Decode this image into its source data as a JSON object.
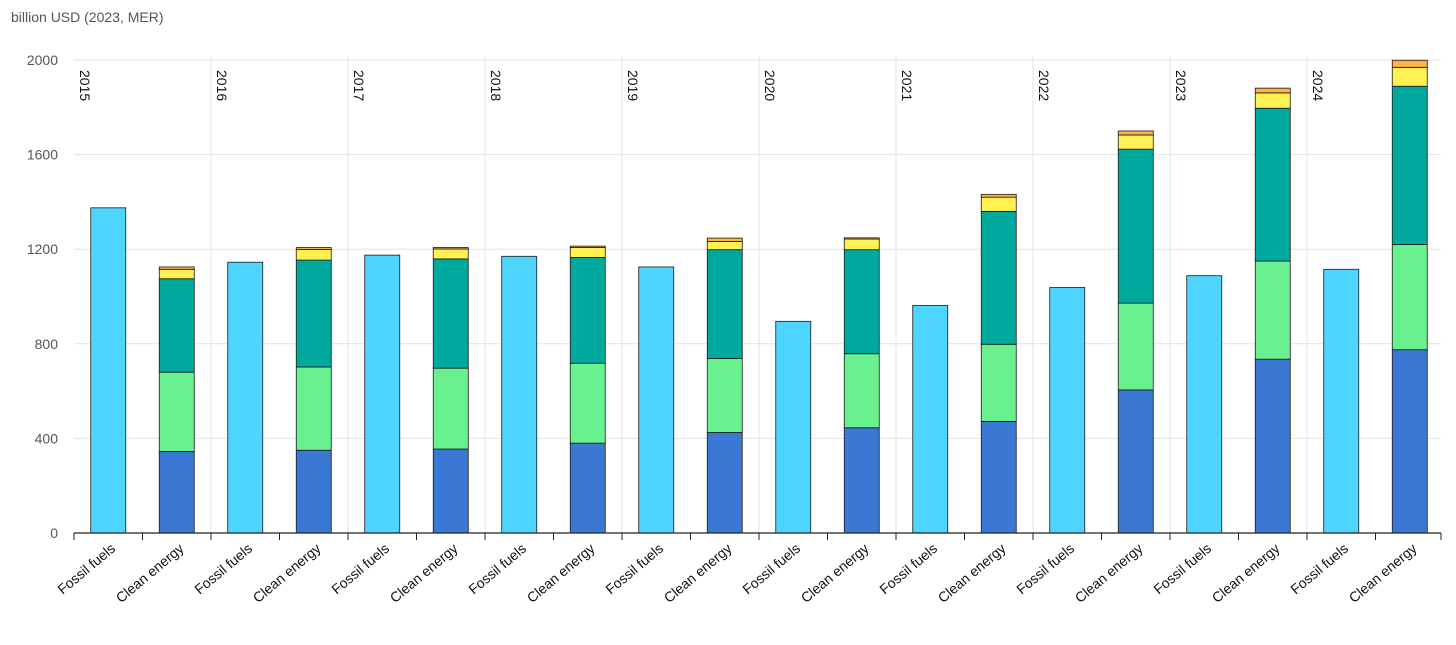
{
  "chart_data": {
    "type": "bar",
    "stacked": true,
    "unit_label": "billion USD (2023, MER)",
    "ylim": [
      0,
      2000
    ],
    "yticks": [
      0,
      400,
      800,
      1200,
      1600,
      2000
    ],
    "years": [
      "2015",
      "2016",
      "2017",
      "2018",
      "2019",
      "2020",
      "2021",
      "2022",
      "2023",
      "2024"
    ],
    "categories": [
      "Fossil fuels",
      "Clean energy"
    ],
    "fossil_fuels": {
      "color": "#4dd4ff",
      "values": [
        1375,
        1145,
        1175,
        1170,
        1125,
        895,
        962,
        1038,
        1088,
        1115
      ]
    },
    "clean_energy_series": [
      {
        "color": "#3b78d4",
        "values": [
          345,
          350,
          355,
          380,
          425,
          445,
          472,
          605,
          735,
          775
        ]
      },
      {
        "color": "#69f08f",
        "values": [
          335,
          352,
          342,
          338,
          313,
          313,
          326,
          367,
          415,
          445
        ]
      },
      {
        "color": "#00a99d",
        "values": [
          395,
          452,
          462,
          447,
          460,
          440,
          562,
          651,
          646,
          669
        ]
      },
      {
        "color": "#fff154",
        "values": [
          40,
          45,
          42,
          42,
          35,
          45,
          60,
          60,
          65,
          80
        ]
      },
      {
        "color": "#ffb347",
        "values": [
          10,
          8,
          6,
          6,
          14,
          5,
          12,
          17,
          20,
          30
        ]
      }
    ]
  }
}
